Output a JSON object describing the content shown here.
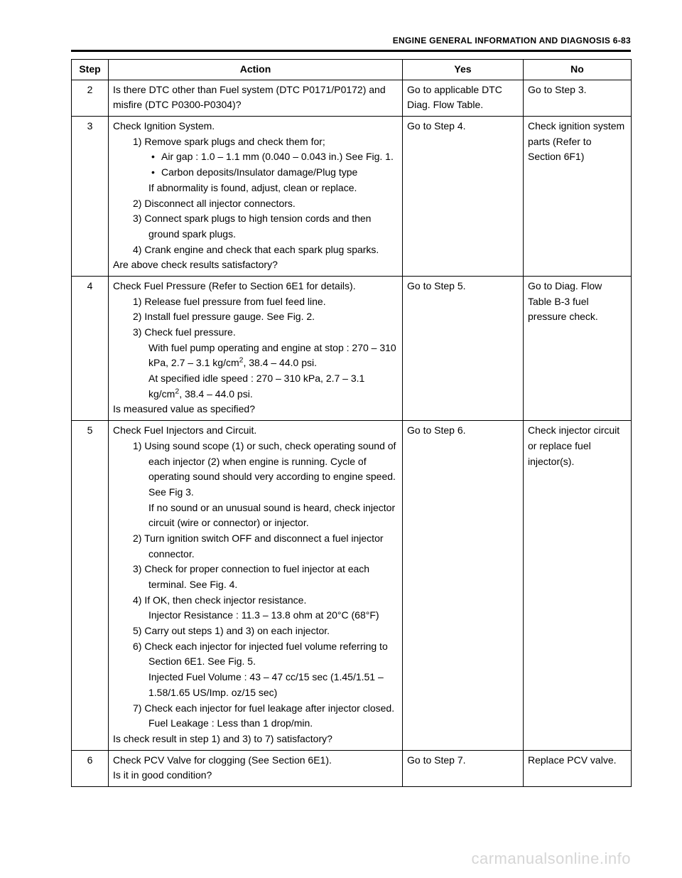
{
  "page": {
    "header": "ENGINE GENERAL INFORMATION AND DIAGNOSIS 6-83",
    "watermark": "carmanualsonline.info"
  },
  "table": {
    "headers": {
      "step": "Step",
      "action": "Action",
      "yes": "Yes",
      "no": "No"
    },
    "colors": {
      "border": "#000000",
      "background": "#ffffff",
      "text": "#000000"
    },
    "rows": [
      {
        "step": "2",
        "action": {
          "lead": "Is there DTC other than Fuel system (DTC P0171/P0172) and misfire (DTC P0300-P0304)?"
        },
        "yes": "Go to applicable DTC Diag. Flow Table.",
        "no": "Go to Step 3."
      },
      {
        "step": "3",
        "action": {
          "lead": "Check Ignition System.",
          "steps": [
            {
              "text": "Remove spark plugs and check them for;",
              "bullets": [
                "Air gap : 1.0 – 1.1 mm (0.040 – 0.043 in.) See Fig. 1.",
                "Carbon deposits/Insulator damage/Plug type"
              ],
              "after_bullets": "If abnormality is found, adjust, clean or replace."
            },
            {
              "text": "Disconnect all injector connectors."
            },
            {
              "text": "Connect spark plugs to high tension cords and then ground spark plugs."
            },
            {
              "text": "Crank engine and check that each spark plug sparks."
            }
          ],
          "tail": "Are above check results satisfactory?"
        },
        "yes": "Go to Step 4.",
        "no": "Check ignition system parts (Refer to Section 6F1)"
      },
      {
        "step": "4",
        "action": {
          "lead": "Check Fuel Pressure (Refer to Section 6E1 for details).",
          "steps": [
            {
              "text": "Release fuel pressure from fuel feed line."
            },
            {
              "text": "Install fuel pressure gauge. See Fig. 2."
            },
            {
              "text": "Check fuel pressure.",
              "sub_html": [
                "With fuel pump operating and engine at stop : 270 – 310 kPa, 2.7 – 3.1 kg/cm<sup>2</sup>, 38.4 – 44.0 psi.",
                "At specified idle speed : 270 – 310 kPa, 2.7 – 3.1 kg/cm<sup>2</sup>, 38.4 – 44.0 psi."
              ]
            }
          ],
          "tail": "Is measured value as specified?"
        },
        "yes": "Go to Step 5.",
        "no": "Go to Diag. Flow Table B-3 fuel pressure check."
      },
      {
        "step": "5",
        "action": {
          "lead": "Check Fuel Injectors and Circuit.",
          "steps": [
            {
              "text": "Using sound scope (1) or such, check operating sound of each injector (2) when engine is running. Cycle of operating sound should very according to engine speed. See Fig 3.",
              "sub": [
                "If no sound or an unusual sound is heard, check injector circuit (wire or connector) or injector."
              ]
            },
            {
              "text": "Turn ignition switch OFF and disconnect a fuel injector connector."
            },
            {
              "text": "Check for proper connection to fuel injector at each terminal. See Fig. 4."
            },
            {
              "text": "If OK, then check injector resistance.",
              "sub": [
                "Injector Resistance : 11.3 – 13.8 ohm at 20°C (68°F)"
              ]
            },
            {
              "text": "Carry out steps 1) and 3) on each injector."
            },
            {
              "text": "Check each injector for injected fuel volume referring to Section 6E1. See Fig. 5.",
              "sub": [
                "Injected Fuel Volume : 43 – 47 cc/15 sec (1.45/1.51 – 1.58/1.65 US/Imp. oz/15 sec)"
              ]
            },
            {
              "text": "Check each injector for fuel leakage after injector closed.",
              "sub": [
                "Fuel Leakage : Less than 1 drop/min."
              ]
            }
          ],
          "tail": "Is check result in step 1) and 3) to 7) satisfactory?"
        },
        "yes": "Go to Step 6.",
        "no": "Check injector circuit or replace fuel injector(s)."
      },
      {
        "step": "6",
        "action": {
          "lead": "Check PCV Valve for clogging (See Section 6E1).",
          "tail": "Is it in good condition?"
        },
        "yes": "Go to Step 7.",
        "no": "Replace PCV valve."
      }
    ]
  }
}
